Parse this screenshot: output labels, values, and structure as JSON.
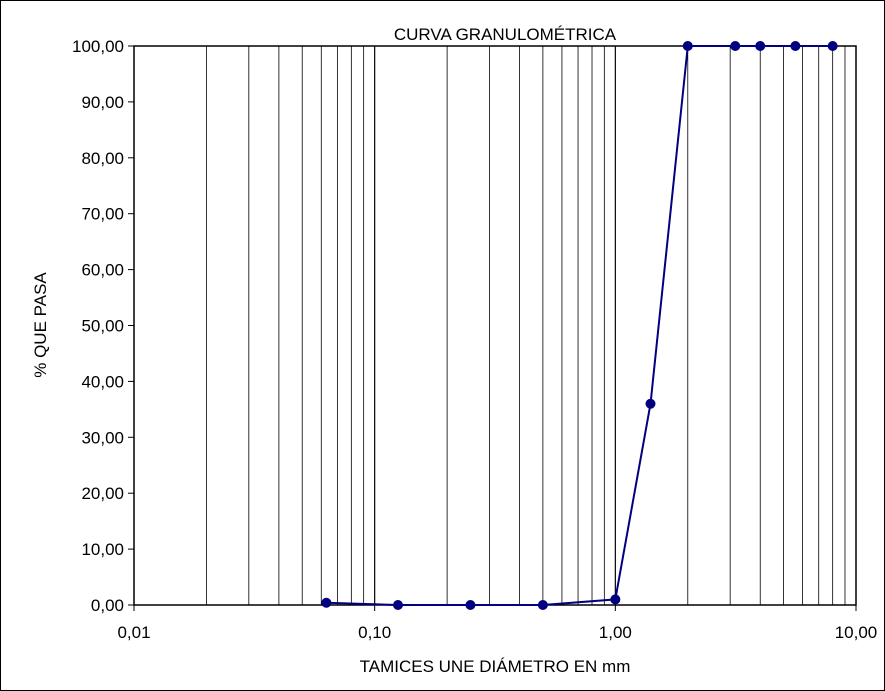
{
  "chart_data": {
    "type": "line",
    "title": "CURVA GRANULOMÉTRICA",
    "xlabel": "TAMICES UNE DIÁMETRO EN mm",
    "ylabel": "% QUE PASA",
    "xscale": "log",
    "xlim": [
      0.01,
      10
    ],
    "ylim": [
      0,
      100
    ],
    "grid": "vertical-minor",
    "legend": "none",
    "x_tick_labels": [
      "0,01",
      "0,10",
      "1,00",
      "10,00"
    ],
    "y_tick_labels": [
      "0,00",
      "10,00",
      "20,00",
      "30,00",
      "40,00",
      "50,00",
      "60,00",
      "70,00",
      "80,00",
      "90,00",
      "100,00"
    ],
    "series": [
      {
        "x": [
          0.063,
          0.125,
          0.25,
          0.5,
          1.0,
          1.4,
          2.0,
          3.15,
          4.0,
          5.6,
          8.0
        ],
        "y": [
          0.4,
          0.0,
          0.0,
          0.0,
          1.0,
          36.0,
          100.0,
          100.0,
          100.0,
          100.0,
          100.0
        ]
      }
    ],
    "colors": {
      "series": "#000080",
      "grid": "#000000",
      "axis": "#000000"
    }
  }
}
